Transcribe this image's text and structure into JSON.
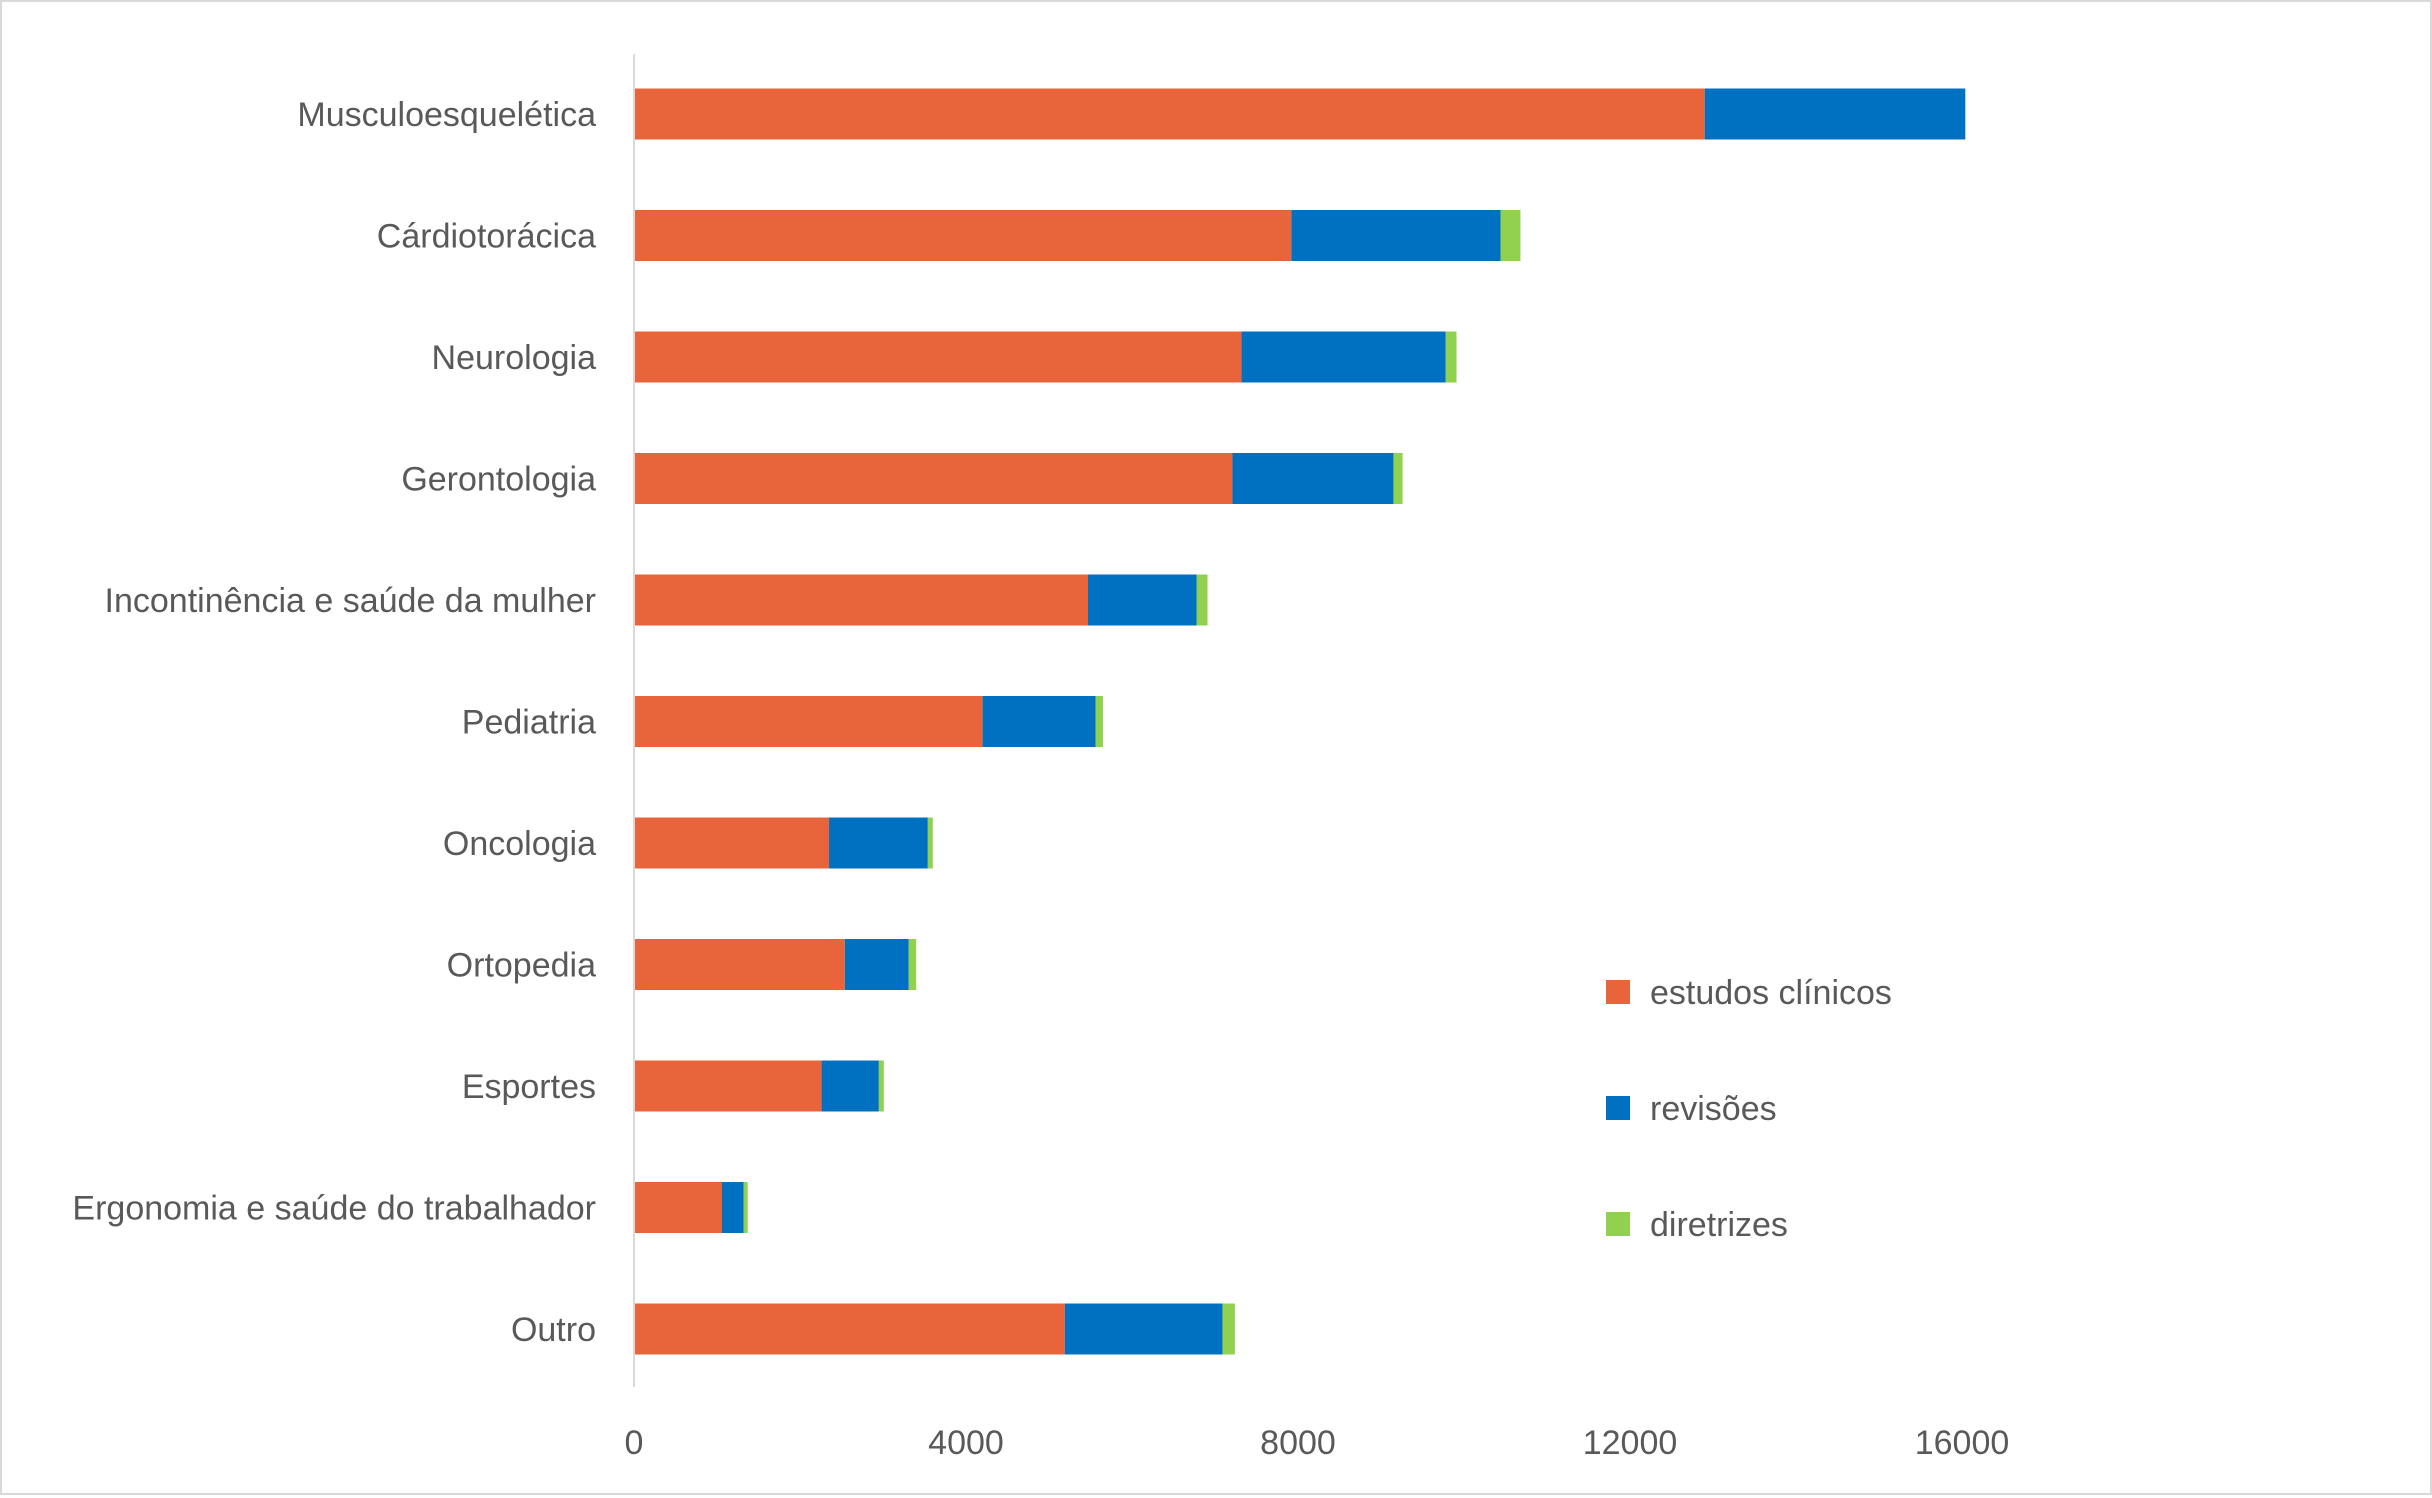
{
  "chart_data": {
    "type": "bar",
    "orientation": "horizontal",
    "stacked": true,
    "title": "",
    "xlabel": "",
    "ylabel": "",
    "xlim": [
      0,
      16000
    ],
    "xticks": [
      "0",
      "4000",
      "8000",
      "12000",
      "16000"
    ],
    "xtick_values": [
      0,
      4000,
      8000,
      12000,
      16000
    ],
    "grid": false,
    "legend_position": "right",
    "categories": [
      "Musculoesquelética",
      "Cárdiotorácica",
      "Neurologia",
      "Gerontologia",
      "Incontinência e saúde da mulher",
      "Pediatria",
      "Oncologia",
      "Ortopedia",
      "Esportes",
      "Ergonomia e saúde do trabalhador",
      "Outro"
    ],
    "series": [
      {
        "name": "estudos clínicos",
        "color": "#E8643A",
        "values": [
          12900,
          7920,
          7320,
          7210,
          5470,
          4200,
          2350,
          2540,
          2260,
          1060,
          5190
        ]
      },
      {
        "name": "revisões",
        "color": "#0070C0",
        "values": [
          3140,
          2520,
          2460,
          1940,
          1310,
          1360,
          1190,
          770,
          690,
          260,
          1900
        ]
      },
      {
        "name": "diretrizes",
        "color": "#92D050",
        "values": [
          0,
          240,
          130,
          110,
          130,
          90,
          60,
          90,
          60,
          50,
          150
        ]
      }
    ]
  }
}
